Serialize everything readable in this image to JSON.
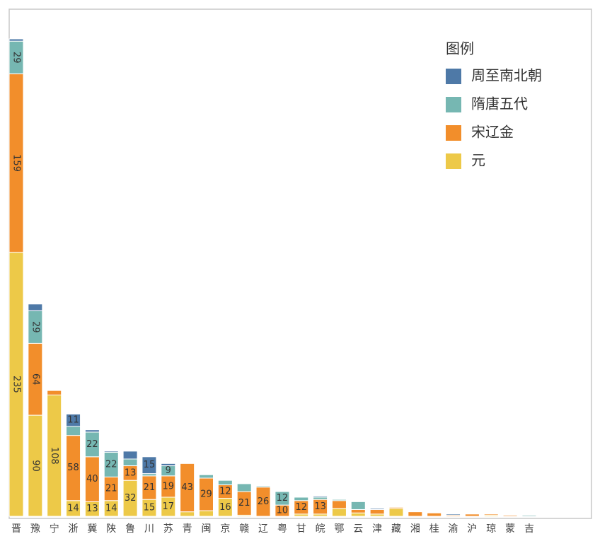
{
  "chart_data": {
    "type": "stacked-bar",
    "legend_title": "图例",
    "categories": [
      "晋",
      "豫",
      "宁",
      "浙",
      "冀",
      "陕",
      "鲁",
      "川",
      "苏",
      "青",
      "闽",
      "京",
      "赣",
      "辽",
      "粤",
      "甘",
      "皖",
      "鄂",
      "云",
      "津",
      "藏",
      "湘",
      "桂",
      "渝",
      "沪",
      "琼",
      "蒙",
      "吉"
    ],
    "series": [
      {
        "name": "周至南北朝",
        "color": "#4e79a7",
        "values": [
          2,
          6,
          0,
          11,
          2,
          1,
          7,
          15,
          2,
          0,
          0,
          0,
          0,
          0,
          0,
          0,
          1,
          0,
          0,
          1,
          0,
          0,
          0,
          1,
          0,
          0,
          0,
          0
        ]
      },
      {
        "name": "隋唐五代",
        "color": "#76b7b2",
        "values": [
          29,
          29,
          0,
          8,
          22,
          22,
          6,
          2,
          9,
          0,
          3,
          4,
          7,
          1,
          12,
          3,
          2,
          1,
          7,
          0,
          0,
          0,
          0,
          0,
          0,
          0,
          0,
          1
        ]
      },
      {
        "name": "宋辽金",
        "color": "#f28e2b",
        "values": [
          159,
          64,
          4,
          58,
          40,
          21,
          13,
          21,
          19,
          43,
          29,
          12,
          21,
          26,
          10,
          12,
          13,
          7,
          3,
          4,
          1,
          4,
          3,
          1,
          2,
          1,
          1,
          0
        ]
      },
      {
        "name": "元",
        "color": "#edc948",
        "values": [
          235,
          90,
          108,
          14,
          13,
          14,
          32,
          15,
          17,
          4,
          5,
          16,
          1,
          0,
          0,
          2,
          2,
          7,
          3,
          2,
          7,
          0,
          0,
          0,
          0,
          1,
          0,
          0
        ]
      }
    ],
    "legend": "top-right"
  }
}
